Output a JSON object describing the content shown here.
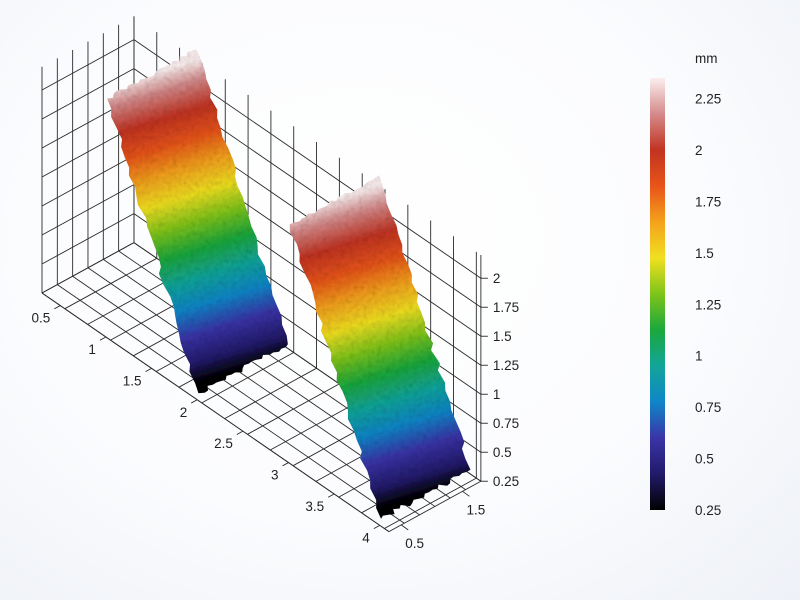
{
  "chart_data": {
    "type": "surface",
    "description_free": true,
    "x_axis": {
      "ticks": [
        "0.5",
        "1",
        "1.5",
        "2",
        "2.5",
        "3",
        "3.5",
        "4"
      ],
      "range": [
        0.3,
        4.1
      ]
    },
    "y_axis": {
      "ticks": [
        "0.5",
        "1.5"
      ],
      "range": [
        0.3,
        1.8
      ]
    },
    "z_axis": {
      "ticks": [
        "0.25",
        "0.5",
        "0.75",
        "1",
        "1.25",
        "1.5",
        "1.75",
        "2"
      ],
      "range": [
        0.25,
        2.2
      ]
    },
    "surface": {
      "profile": "sawtooth",
      "peaks": [
        {
          "x": 1.0,
          "z": 2.3
        },
        {
          "x": 3.0,
          "z": 2.3
        }
      ],
      "troughs": [
        {
          "x": 2.0,
          "z": 0.3
        },
        {
          "x": 4.0,
          "z": 0.3
        }
      ]
    },
    "colorbar": {
      "unit": "mm",
      "ticks": [
        "2.25",
        "2",
        "1.75",
        "1.5",
        "1.25",
        "1",
        "0.75",
        "0.5",
        "0.25"
      ],
      "min": 0.25,
      "max": 2.35,
      "colormap": [
        "#000000",
        "#221a6a",
        "#3a34a8",
        "#0f86c8",
        "#12a59a",
        "#1aa83c",
        "#7ec41a",
        "#f0e020",
        "#f4a21c",
        "#e8541a",
        "#c23322",
        "#d58a8a",
        "#fbeeee"
      ]
    },
    "grid": true
  }
}
